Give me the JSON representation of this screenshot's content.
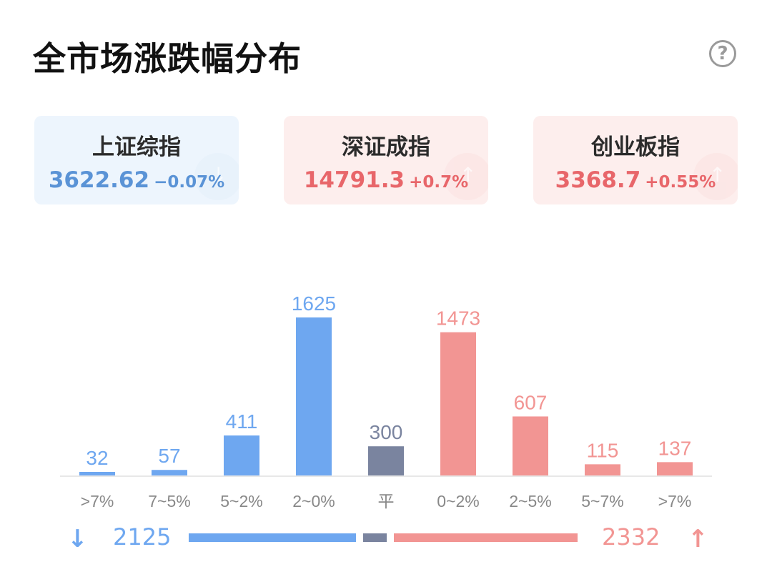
{
  "title": "全市场涨跌幅分布",
  "help_icon": "?",
  "indices": [
    {
      "name": "上证综指",
      "value": "3622.62",
      "change": "−0.07%",
      "direction": "down"
    },
    {
      "name": "深证成指",
      "value": "14791.3",
      "change": "+0.7%",
      "direction": "up"
    },
    {
      "name": "创业板指",
      "value": "3368.7",
      "change": "+0.55%",
      "direction": "up"
    }
  ],
  "colors": {
    "down": "#6ea7f0",
    "flat": "#7a849f",
    "up": "#f29593",
    "axis": "#e8e8e8",
    "tick": "#888888"
  },
  "chart_data": {
    "type": "bar",
    "categories": [
      ">7%",
      "7~5%",
      "5~2%",
      "2~0%",
      "平",
      "0~2%",
      "2~5%",
      "5~7%",
      ">7%"
    ],
    "values": [
      32,
      57,
      411,
      1625,
      300,
      1473,
      607,
      115,
      137
    ],
    "groups": [
      "down",
      "down",
      "down",
      "down",
      "flat",
      "up",
      "up",
      "up",
      "up"
    ],
    "ylim": [
      0,
      1625
    ]
  },
  "summary": {
    "down_count": "2125",
    "up_count": "2332",
    "flat_count": 300,
    "down_arrow": "↓",
    "up_arrow": "↑"
  }
}
